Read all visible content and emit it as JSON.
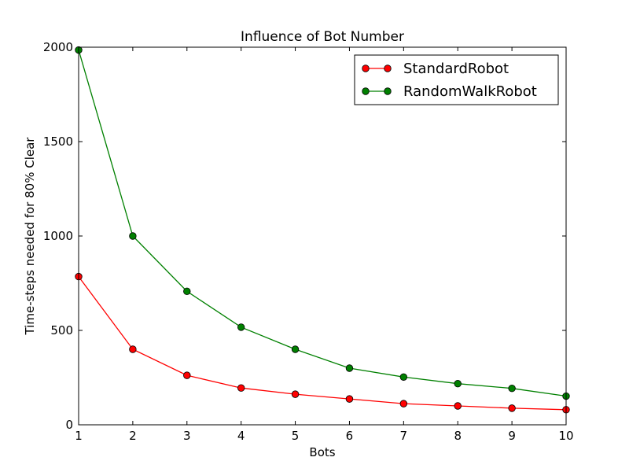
{
  "chart_data": {
    "type": "line",
    "title": "Influence of Bot Number",
    "xlabel": "Bots",
    "ylabel": "Time-steps needed for 80% Clear",
    "x": [
      1,
      2,
      3,
      4,
      5,
      6,
      7,
      8,
      9,
      10
    ],
    "xlim": [
      1,
      10
    ],
    "ylim": [
      0,
      2000
    ],
    "xticks": [
      "1",
      "2",
      "3",
      "4",
      "5",
      "6",
      "7",
      "8",
      "9",
      "10"
    ],
    "yticks": [
      "0",
      "500",
      "1000",
      "1500",
      "2000"
    ],
    "grid": false,
    "legend_position": "top-right",
    "series": [
      {
        "name": "StandardRobot",
        "color": "#ff0000",
        "values": [
          785,
          400,
          262,
          195,
          162,
          137,
          112,
          100,
          88,
          80
        ]
      },
      {
        "name": "RandomWalkRobot",
        "color": "#008000",
        "values": [
          1985,
          1000,
          707,
          517,
          400,
          300,
          253,
          218,
          193,
          152
        ]
      }
    ]
  }
}
